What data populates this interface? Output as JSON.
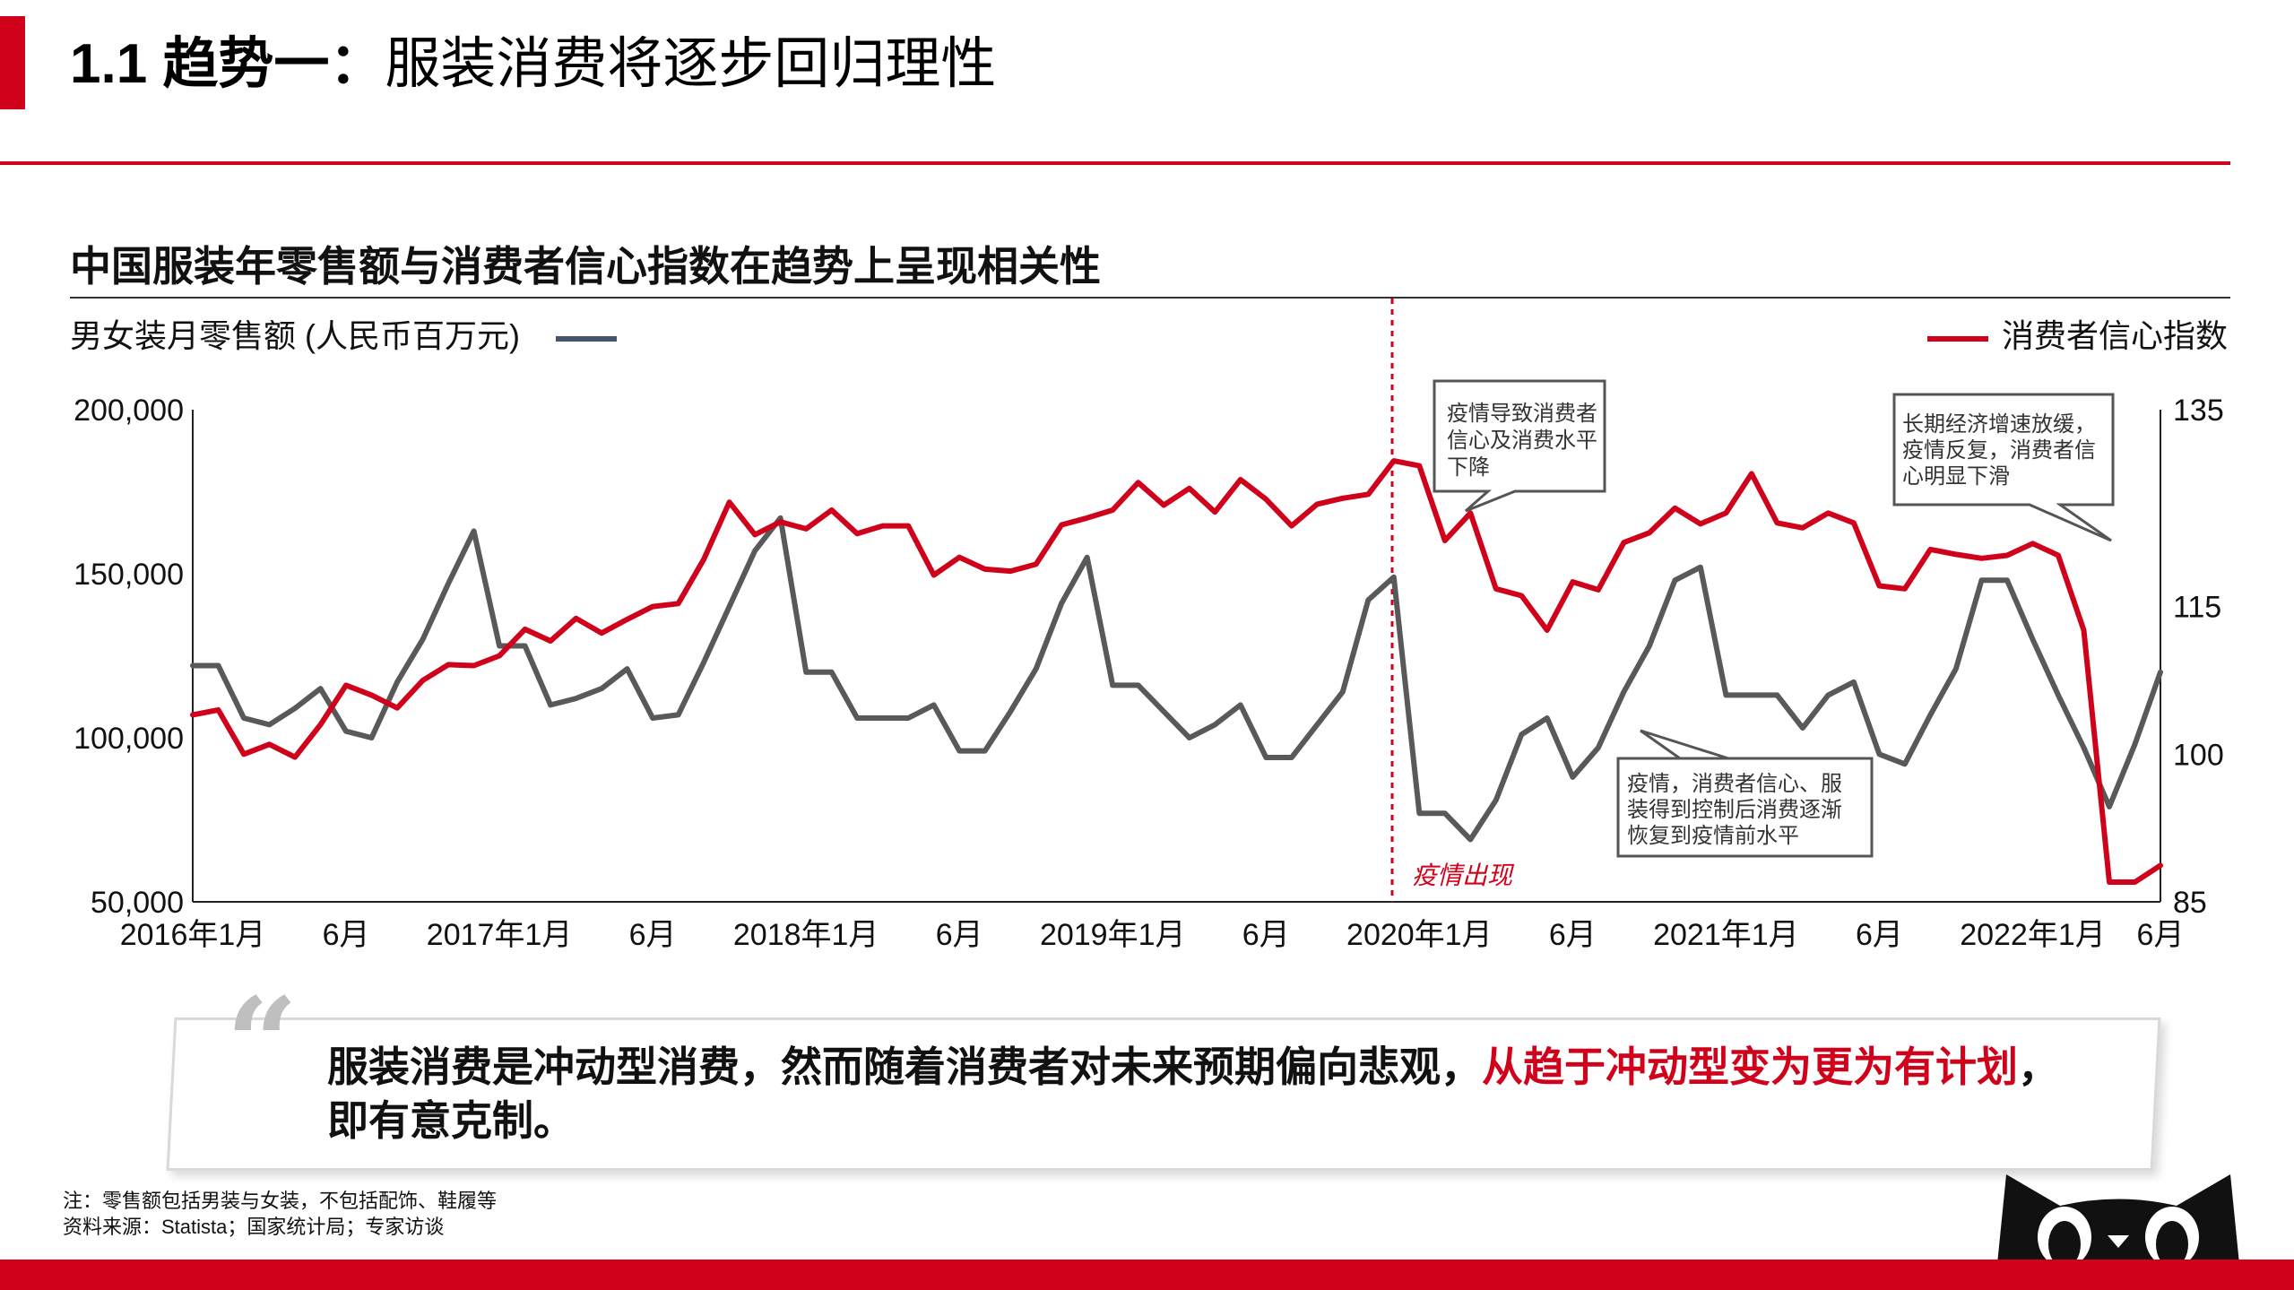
{
  "header": {
    "title_bold": "1.1 趋势一：",
    "title_rest": "服装消费将逐步回归理性"
  },
  "chart_data": {
    "type": "line",
    "title": "中国服装年零售额与消费者信心指数在趋势上呈现相关性",
    "ylabel_left": "男女装月零售额 (人民币百万元)",
    "ylabel_right": "消费者信心指数",
    "ylim_left": [
      50000,
      200000
    ],
    "ylim_right": [
      85,
      135
    ],
    "yticks_left": [
      "200,000",
      "150,000",
      "100,000",
      "50,000"
    ],
    "yticks_right": [
      "135",
      "115",
      "100",
      "85"
    ],
    "x_period": "2016-01 to 2022-06 (monthly, 78 points)",
    "xticks": [
      {
        "i": 0,
        "label": "2016年1月"
      },
      {
        "i": 6,
        "label": "6月"
      },
      {
        "i": 12,
        "label": "2017年1月"
      },
      {
        "i": 18,
        "label": "6月"
      },
      {
        "i": 24,
        "label": "2018年1月"
      },
      {
        "i": 30,
        "label": "6月"
      },
      {
        "i": 36,
        "label": "2019年1月"
      },
      {
        "i": 42,
        "label": "6月"
      },
      {
        "i": 48,
        "label": "2020年1月"
      },
      {
        "i": 54,
        "label": "6月"
      },
      {
        "i": 60,
        "label": "2021年1月"
      },
      {
        "i": 66,
        "label": "6月"
      },
      {
        "i": 72,
        "label": "2022年1月"
      },
      {
        "i": 77,
        "label": "6月"
      }
    ],
    "series": [
      {
        "name": "男女装月零售额 (人民币百万元)",
        "axis": "left",
        "color": "#595959",
        "values": [
          122000,
          122000,
          106000,
          104000,
          109000,
          115000,
          102000,
          100000,
          117000,
          130000,
          147000,
          163000,
          128000,
          128000,
          110000,
          112000,
          115000,
          121000,
          106000,
          107000,
          123000,
          140000,
          157000,
          167000,
          120000,
          120000,
          106000,
          106000,
          106000,
          110000,
          96000,
          96000,
          108000,
          121000,
          141000,
          155000,
          116000,
          116000,
          108000,
          100000,
          104000,
          110000,
          94000,
          94000,
          104000,
          114000,
          142000,
          149000,
          77000,
          77000,
          69000,
          81000,
          101000,
          106000,
          88000,
          97000,
          114000,
          128000,
          148000,
          152000,
          113000,
          113000,
          113000,
          103000,
          113000,
          117000,
          95000,
          92000,
          107000,
          121000,
          148000,
          148000,
          130000,
          113000,
          97000,
          79000,
          98000,
          120000
        ]
      },
      {
        "name": "消费者信心指数",
        "axis": "right",
        "color": "#d0021b",
        "values": [
          104,
          104.5,
          100,
          101,
          99.7,
          103,
          107,
          106,
          104.7,
          107.5,
          109.1,
          109,
          110,
          112.7,
          111.5,
          113.8,
          112.3,
          113.7,
          115,
          115.3,
          119.8,
          125.6,
          122.3,
          123.6,
          122.9,
          124.8,
          122.4,
          123.2,
          123.2,
          118.2,
          120,
          118.8,
          118.6,
          119.3,
          123.3,
          124,
          124.8,
          127.6,
          125.3,
          127,
          124.6,
          127.9,
          125.9,
          123.2,
          125.4,
          126,
          126.4,
          129.8,
          129.3,
          121.7,
          124.5,
          116.8,
          116.1,
          112.6,
          117.5,
          116.7,
          121.5,
          122.5,
          125,
          123.4,
          124.5,
          128.5,
          123.5,
          123,
          124.5,
          123.5,
          117.1,
          116.8,
          120.8,
          120.3,
          119.9,
          120.2,
          121.4,
          120.2,
          112.6,
          87,
          87,
          88.7
        ]
      }
    ],
    "annotations": [
      {
        "text_lines": [
          "疫情导致消费者",
          "信心及消费水平",
          "下降"
        ]
      },
      {
        "text_lines": [
          "长期经济增速放缓，",
          "疫情反复，消费者信",
          "心明显下滑"
        ]
      },
      {
        "text_lines": [
          "疫情，消费者信心、服",
          "装得到控制后消费逐渐",
          "恢复到疫情前水平"
        ]
      },
      {
        "text": "疫情出现"
      }
    ]
  },
  "quote": {
    "mark": "“",
    "text_normal": "服装消费是冲动型消费，然而随着消费者对未来预期偏向悲观，",
    "text_highlight": "从趋于冲动型变为更为有计划",
    "text_end": "，即有意克制。"
  },
  "notes": {
    "line1": "注：零售额包括男装与女装，不包括配饰、鞋履等",
    "line2": "资料来源：Statista；国家统计局；专家访谈"
  },
  "colors": {
    "accent": "#d0021b",
    "retail_line": "#595959",
    "legend_dark": "#44546a"
  }
}
